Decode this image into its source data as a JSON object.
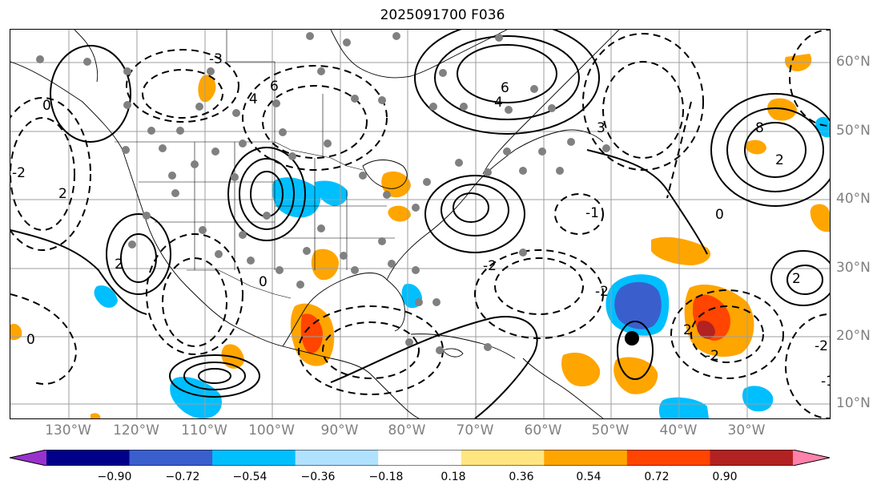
{
  "title": "2025091700 F036",
  "lon_labels": [
    "130°W",
    "120°W",
    "110°W",
    "100°W",
    "90°W",
    "80°W",
    "70°W",
    "60°W",
    "50°W",
    "40°W",
    "30°W"
  ],
  "lat_labels": [
    "60°N",
    "50°N",
    "40°N",
    "30°N",
    "20°N",
    "10°N"
  ],
  "colorbar": {
    "labels": [
      "−0.90",
      "−0.72",
      "−0.54",
      "−0.36",
      "−0.18",
      "0.18",
      "0.36",
      "0.54",
      "0.72",
      "0.90"
    ],
    "colors": [
      "#9932cc",
      "#00008b",
      "#3a5fcd",
      "#00bfff",
      "#b0e2ff",
      "#ffffff",
      "#ffe680",
      "#ffa500",
      "#ff4500",
      "#b22222",
      "#ff82ab"
    ]
  },
  "contour_labels": [
    {
      "text": "6"
    },
    {
      "text": "4"
    },
    {
      "text": "2"
    },
    {
      "text": "-2"
    },
    {
      "text": "0"
    },
    {
      "text": "-3"
    },
    {
      "text": "8"
    },
    {
      "text": "6"
    },
    {
      "text": "4"
    },
    {
      "text": "2"
    },
    {
      "text": "-2"
    },
    {
      "text": "0"
    },
    {
      "text": "2"
    },
    {
      "text": "-2"
    },
    {
      "text": "0"
    },
    {
      "text": "2"
    },
    {
      "text": "-2"
    },
    {
      "text": "0"
    },
    {
      "text": "-1"
    },
    {
      "text": "-2"
    },
    {
      "text": "2"
    },
    {
      "text": "3"
    },
    {
      "text": "-1"
    }
  ]
}
